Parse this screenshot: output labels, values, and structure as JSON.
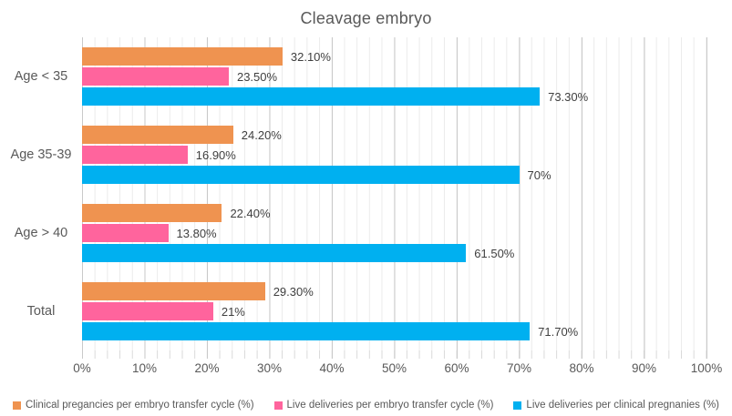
{
  "title": "Cleavage embryo",
  "chart_data": {
    "type": "bar",
    "orientation": "horizontal",
    "title": "Cleavage embryo",
    "categories": [
      "Age < 35",
      "Age 35-39",
      "Age > 40",
      "Total"
    ],
    "series": [
      {
        "name": "Clinical pregancies per embryo transfer cycle (%)",
        "color": "#EF9350",
        "values": [
          32.1,
          24.2,
          22.4,
          29.3
        ],
        "labels": [
          "32.10%",
          "24.20%",
          "22.40%",
          "29.30%"
        ]
      },
      {
        "name": "Live deliveries per embryo transfer cycle (%)",
        "color": "#FF649D",
        "values": [
          23.5,
          16.9,
          13.8,
          21
        ],
        "labels": [
          "23.50%",
          "16.90%",
          "13.80%",
          "21%"
        ]
      },
      {
        "name": "Live deliveries per clinical pregnanies (%)",
        "color": "#00B0F0",
        "values": [
          73.3,
          70,
          61.5,
          71.7
        ],
        "labels": [
          "73.30%",
          "70%",
          "61.50%",
          "71.70%"
        ]
      }
    ],
    "xlim": [
      0,
      100
    ],
    "x_tick_labels": [
      "0%",
      "10%",
      "20%",
      "30%",
      "40%",
      "50%",
      "60%",
      "70%",
      "80%",
      "90%",
      "100%"
    ],
    "grid": {
      "minor_step_pct": 2,
      "major_step_pct": 10,
      "grid_on": true
    },
    "legend_position": "bottom"
  }
}
